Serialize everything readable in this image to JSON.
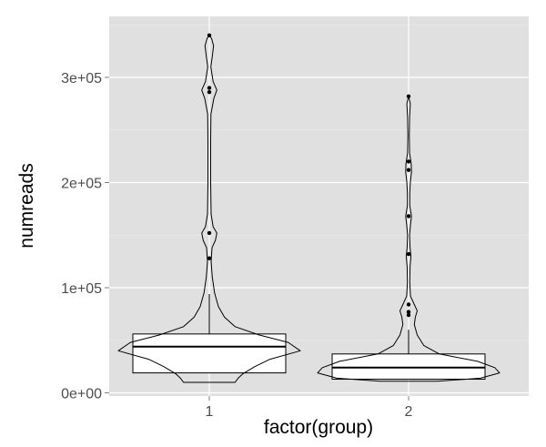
{
  "colors": {
    "panel_background": "#e0e0e0",
    "grid_major": "#ffffff",
    "grid_minor": "#ebebeb",
    "mark_stroke": "#000000",
    "box_fill": "#ffffff",
    "violin_fill": "#ffffff"
  },
  "chart_data": {
    "type": "violin+box",
    "title": "",
    "xlabel": "factor(group)",
    "ylabel": "numreads",
    "categories": [
      "1",
      "2"
    ],
    "ylim": [
      -3000,
      358000
    ],
    "y_ticks": [
      0,
      100000,
      200000,
      300000
    ],
    "y_tick_labels": [
      "0e+00",
      "1e+05",
      "2e+05",
      "3e+05"
    ],
    "x_tick_labels": [
      "1",
      "2"
    ],
    "grid": true,
    "legend": "none",
    "groups": [
      {
        "name": "1",
        "box": {
          "lower": 19000,
          "q1": 19000,
          "median": 44000,
          "q3": 56000,
          "upper": 94000
        },
        "outliers": [
          340000,
          290000,
          286000,
          152000,
          128000
        ],
        "violin_profile": [
          [
            10000,
            0.17
          ],
          [
            14000,
            0.19
          ],
          [
            18000,
            0.22
          ],
          [
            25000,
            0.3
          ],
          [
            32000,
            0.4
          ],
          [
            40000,
            0.6
          ],
          [
            48000,
            0.52
          ],
          [
            55000,
            0.33
          ],
          [
            63000,
            0.17
          ],
          [
            72000,
            0.1
          ],
          [
            82000,
            0.06
          ],
          [
            95000,
            0.035
          ],
          [
            110000,
            0.02
          ],
          [
            125000,
            0.012
          ],
          [
            138000,
            0.018
          ],
          [
            145000,
            0.04
          ],
          [
            152000,
            0.05
          ],
          [
            158000,
            0.025
          ],
          [
            170000,
            0.012
          ],
          [
            200000,
            0.009
          ],
          [
            240000,
            0.009
          ],
          [
            265000,
            0.011
          ],
          [
            280000,
            0.03
          ],
          [
            288000,
            0.05
          ],
          [
            296000,
            0.025
          ],
          [
            310000,
            0.01
          ],
          [
            320000,
            0.02
          ],
          [
            330000,
            0.028
          ],
          [
            337000,
            0.015
          ],
          [
            340000,
            0.0
          ]
        ]
      },
      {
        "name": "2",
        "box": {
          "lower": 13000,
          "q1": 13000,
          "median": 24000,
          "q3": 37000,
          "upper": 60000
        },
        "outliers": [
          282000,
          220000,
          212000,
          168000,
          132000,
          84000,
          77000,
          74000
        ],
        "violin_profile": [
          [
            11000,
            0.3
          ],
          [
            14000,
            0.75
          ],
          [
            19000,
            0.95
          ],
          [
            24000,
            0.9
          ],
          [
            30000,
            0.72
          ],
          [
            37000,
            0.32
          ],
          [
            45000,
            0.16
          ],
          [
            55000,
            0.09
          ],
          [
            65000,
            0.06
          ],
          [
            72000,
            0.07
          ],
          [
            78000,
            0.09
          ],
          [
            84000,
            0.06
          ],
          [
            92000,
            0.02
          ],
          [
            105000,
            0.012
          ],
          [
            120000,
            0.015
          ],
          [
            130000,
            0.025
          ],
          [
            138000,
            0.015
          ],
          [
            150000,
            0.01
          ],
          [
            160000,
            0.02
          ],
          [
            168000,
            0.03
          ],
          [
            178000,
            0.012
          ],
          [
            190000,
            0.012
          ],
          [
            200000,
            0.018
          ],
          [
            210000,
            0.03
          ],
          [
            218000,
            0.028
          ],
          [
            228000,
            0.01
          ],
          [
            245000,
            0.008
          ],
          [
            262000,
            0.01
          ],
          [
            275000,
            0.018
          ],
          [
            282000,
            0.0
          ]
        ]
      }
    ]
  }
}
